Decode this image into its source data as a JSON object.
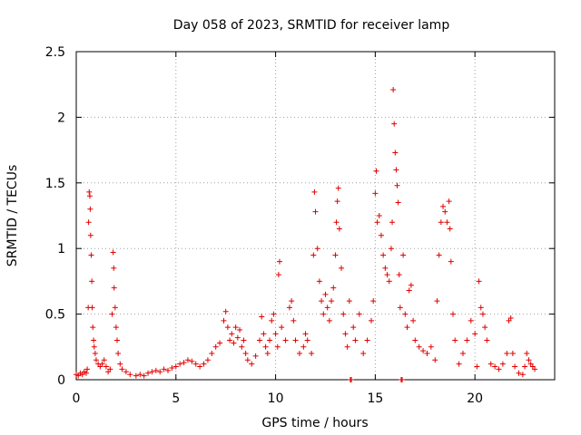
{
  "chart_data": {
    "type": "scatter",
    "title": "Day 058 of 2023, SRMTID for receiver lamp",
    "xlabel": "GPS time / hours",
    "ylabel": "SRMTID / TECUs",
    "xlim": [
      0,
      24
    ],
    "ylim": [
      0,
      2.5
    ],
    "xticks": [
      0,
      5,
      10,
      15,
      20
    ],
    "xtick_labels": [
      "0",
      "5",
      "10",
      "15",
      "20"
    ],
    "yticks": [
      0,
      0.5,
      1,
      1.5,
      2,
      2.5
    ],
    "ytick_labels": [
      "0",
      "0.5",
      "1",
      "1.5",
      "2",
      "2.5"
    ],
    "grid": true,
    "marker": "+",
    "color": "#e00000",
    "series": [
      {
        "name": "lamp",
        "points": [
          [
            0.0,
            0.04
          ],
          [
            0.1,
            0.03
          ],
          [
            0.2,
            0.05
          ],
          [
            0.3,
            0.04
          ],
          [
            0.4,
            0.06
          ],
          [
            0.5,
            0.05
          ],
          [
            0.55,
            0.08
          ],
          [
            0.6,
            0.55
          ],
          [
            0.62,
            1.2
          ],
          [
            0.65,
            1.43
          ],
          [
            0.68,
            1.4
          ],
          [
            0.7,
            1.3
          ],
          [
            0.72,
            1.1
          ],
          [
            0.75,
            0.95
          ],
          [
            0.78,
            0.75
          ],
          [
            0.8,
            0.55
          ],
          [
            0.83,
            0.4
          ],
          [
            0.87,
            0.3
          ],
          [
            0.9,
            0.25
          ],
          [
            0.95,
            0.2
          ],
          [
            1.0,
            0.15
          ],
          [
            1.1,
            0.12
          ],
          [
            1.2,
            0.1
          ],
          [
            1.3,
            0.12
          ],
          [
            1.4,
            0.15
          ],
          [
            1.5,
            0.1
          ],
          [
            1.6,
            0.06
          ],
          [
            1.7,
            0.08
          ],
          [
            1.8,
            0.5
          ],
          [
            1.85,
            0.97
          ],
          [
            1.88,
            0.85
          ],
          [
            1.9,
            0.7
          ],
          [
            1.95,
            0.55
          ],
          [
            2.0,
            0.4
          ],
          [
            2.05,
            0.3
          ],
          [
            2.1,
            0.2
          ],
          [
            2.2,
            0.12
          ],
          [
            2.3,
            0.08
          ],
          [
            2.5,
            0.06
          ],
          [
            2.7,
            0.04
          ],
          [
            3.0,
            0.03
          ],
          [
            3.2,
            0.04
          ],
          [
            3.4,
            0.03
          ],
          [
            3.6,
            0.05
          ],
          [
            3.8,
            0.06
          ],
          [
            4.0,
            0.07
          ],
          [
            4.2,
            0.06
          ],
          [
            4.4,
            0.08
          ],
          [
            4.6,
            0.07
          ],
          [
            4.8,
            0.09
          ],
          [
            5.0,
            0.1
          ],
          [
            5.2,
            0.12
          ],
          [
            5.4,
            0.13
          ],
          [
            5.6,
            0.15
          ],
          [
            5.8,
            0.14
          ],
          [
            6.0,
            0.12
          ],
          [
            6.2,
            0.1
          ],
          [
            6.4,
            0.12
          ],
          [
            6.6,
            0.15
          ],
          [
            6.8,
            0.2
          ],
          [
            7.0,
            0.25
          ],
          [
            7.2,
            0.28
          ],
          [
            7.4,
            0.45
          ],
          [
            7.5,
            0.52
          ],
          [
            7.6,
            0.4
          ],
          [
            7.7,
            0.3
          ],
          [
            7.8,
            0.35
          ],
          [
            7.9,
            0.28
          ],
          [
            8.0,
            0.4
          ],
          [
            8.1,
            0.32
          ],
          [
            8.2,
            0.38
          ],
          [
            8.3,
            0.25
          ],
          [
            8.4,
            0.3
          ],
          [
            8.5,
            0.2
          ],
          [
            8.6,
            0.15
          ],
          [
            8.8,
            0.12
          ],
          [
            9.0,
            0.18
          ],
          [
            9.2,
            0.3
          ],
          [
            9.3,
            0.48
          ],
          [
            9.4,
            0.35
          ],
          [
            9.5,
            0.25
          ],
          [
            9.6,
            0.2
          ],
          [
            9.7,
            0.3
          ],
          [
            9.8,
            0.45
          ],
          [
            9.9,
            0.5
          ],
          [
            10.0,
            0.35
          ],
          [
            10.1,
            0.25
          ],
          [
            10.15,
            0.8
          ],
          [
            10.2,
            0.9
          ],
          [
            10.3,
            0.4
          ],
          [
            10.5,
            0.3
          ],
          [
            10.7,
            0.55
          ],
          [
            10.8,
            0.6
          ],
          [
            10.9,
            0.45
          ],
          [
            11.0,
            0.3
          ],
          [
            11.2,
            0.2
          ],
          [
            11.4,
            0.25
          ],
          [
            11.5,
            0.35
          ],
          [
            11.6,
            0.3
          ],
          [
            11.8,
            0.2
          ],
          [
            11.9,
            0.95
          ],
          [
            11.95,
            1.43
          ],
          [
            12.0,
            1.28
          ],
          [
            12.1,
            1.0
          ],
          [
            12.2,
            0.75
          ],
          [
            12.3,
            0.6
          ],
          [
            12.4,
            0.5
          ],
          [
            12.5,
            0.65
          ],
          [
            12.6,
            0.55
          ],
          [
            12.7,
            0.45
          ],
          [
            12.8,
            0.6
          ],
          [
            12.9,
            0.7
          ],
          [
            13.0,
            0.95
          ],
          [
            13.05,
            1.2
          ],
          [
            13.1,
            1.36
          ],
          [
            13.15,
            1.46
          ],
          [
            13.2,
            1.15
          ],
          [
            13.3,
            0.85
          ],
          [
            13.4,
            0.5
          ],
          [
            13.5,
            0.35
          ],
          [
            13.6,
            0.25
          ],
          [
            13.7,
            0.6
          ],
          [
            13.75,
            0.0
          ],
          [
            13.8,
            0.0
          ],
          [
            13.9,
            0.4
          ],
          [
            14.0,
            0.3
          ],
          [
            14.2,
            0.5
          ],
          [
            14.4,
            0.2
          ],
          [
            14.6,
            0.3
          ],
          [
            14.8,
            0.45
          ],
          [
            14.9,
            0.6
          ],
          [
            15.0,
            1.42
          ],
          [
            15.05,
            1.59
          ],
          [
            15.1,
            1.2
          ],
          [
            15.2,
            1.25
          ],
          [
            15.3,
            1.1
          ],
          [
            15.4,
            0.95
          ],
          [
            15.5,
            0.85
          ],
          [
            15.6,
            0.8
          ],
          [
            15.7,
            0.75
          ],
          [
            15.8,
            1.0
          ],
          [
            15.85,
            1.2
          ],
          [
            15.9,
            2.21
          ],
          [
            15.95,
            1.95
          ],
          [
            16.0,
            1.73
          ],
          [
            16.05,
            1.6
          ],
          [
            16.1,
            1.48
          ],
          [
            16.15,
            1.35
          ],
          [
            16.2,
            0.8
          ],
          [
            16.25,
            0.55
          ],
          [
            16.3,
            0.0
          ],
          [
            16.35,
            0.0
          ],
          [
            16.4,
            0.95
          ],
          [
            16.5,
            0.5
          ],
          [
            16.6,
            0.4
          ],
          [
            16.7,
            0.68
          ],
          [
            16.8,
            0.72
          ],
          [
            16.9,
            0.45
          ],
          [
            17.0,
            0.3
          ],
          [
            17.2,
            0.25
          ],
          [
            17.4,
            0.22
          ],
          [
            17.6,
            0.2
          ],
          [
            17.8,
            0.25
          ],
          [
            18.0,
            0.15
          ],
          [
            18.1,
            0.6
          ],
          [
            18.2,
            0.95
          ],
          [
            18.3,
            1.2
          ],
          [
            18.4,
            1.32
          ],
          [
            18.5,
            1.28
          ],
          [
            18.6,
            1.2
          ],
          [
            18.7,
            1.36
          ],
          [
            18.75,
            1.15
          ],
          [
            18.8,
            0.9
          ],
          [
            18.9,
            0.5
          ],
          [
            19.0,
            0.3
          ],
          [
            19.2,
            0.12
          ],
          [
            19.4,
            0.2
          ],
          [
            19.6,
            0.3
          ],
          [
            19.8,
            0.45
          ],
          [
            20.0,
            0.35
          ],
          [
            20.1,
            0.1
          ],
          [
            20.2,
            0.75
          ],
          [
            20.3,
            0.55
          ],
          [
            20.4,
            0.5
          ],
          [
            20.5,
            0.4
          ],
          [
            20.6,
            0.3
          ],
          [
            20.8,
            0.12
          ],
          [
            21.0,
            0.1
          ],
          [
            21.2,
            0.08
          ],
          [
            21.4,
            0.12
          ],
          [
            21.6,
            0.2
          ],
          [
            21.7,
            0.45
          ],
          [
            21.8,
            0.47
          ],
          [
            21.9,
            0.2
          ],
          [
            22.0,
            0.1
          ],
          [
            22.2,
            0.05
          ],
          [
            22.4,
            0.04
          ],
          [
            22.5,
            0.1
          ],
          [
            22.6,
            0.2
          ],
          [
            22.7,
            0.15
          ],
          [
            22.8,
            0.12
          ],
          [
            22.9,
            0.1
          ],
          [
            23.0,
            0.08
          ]
        ]
      }
    ]
  }
}
